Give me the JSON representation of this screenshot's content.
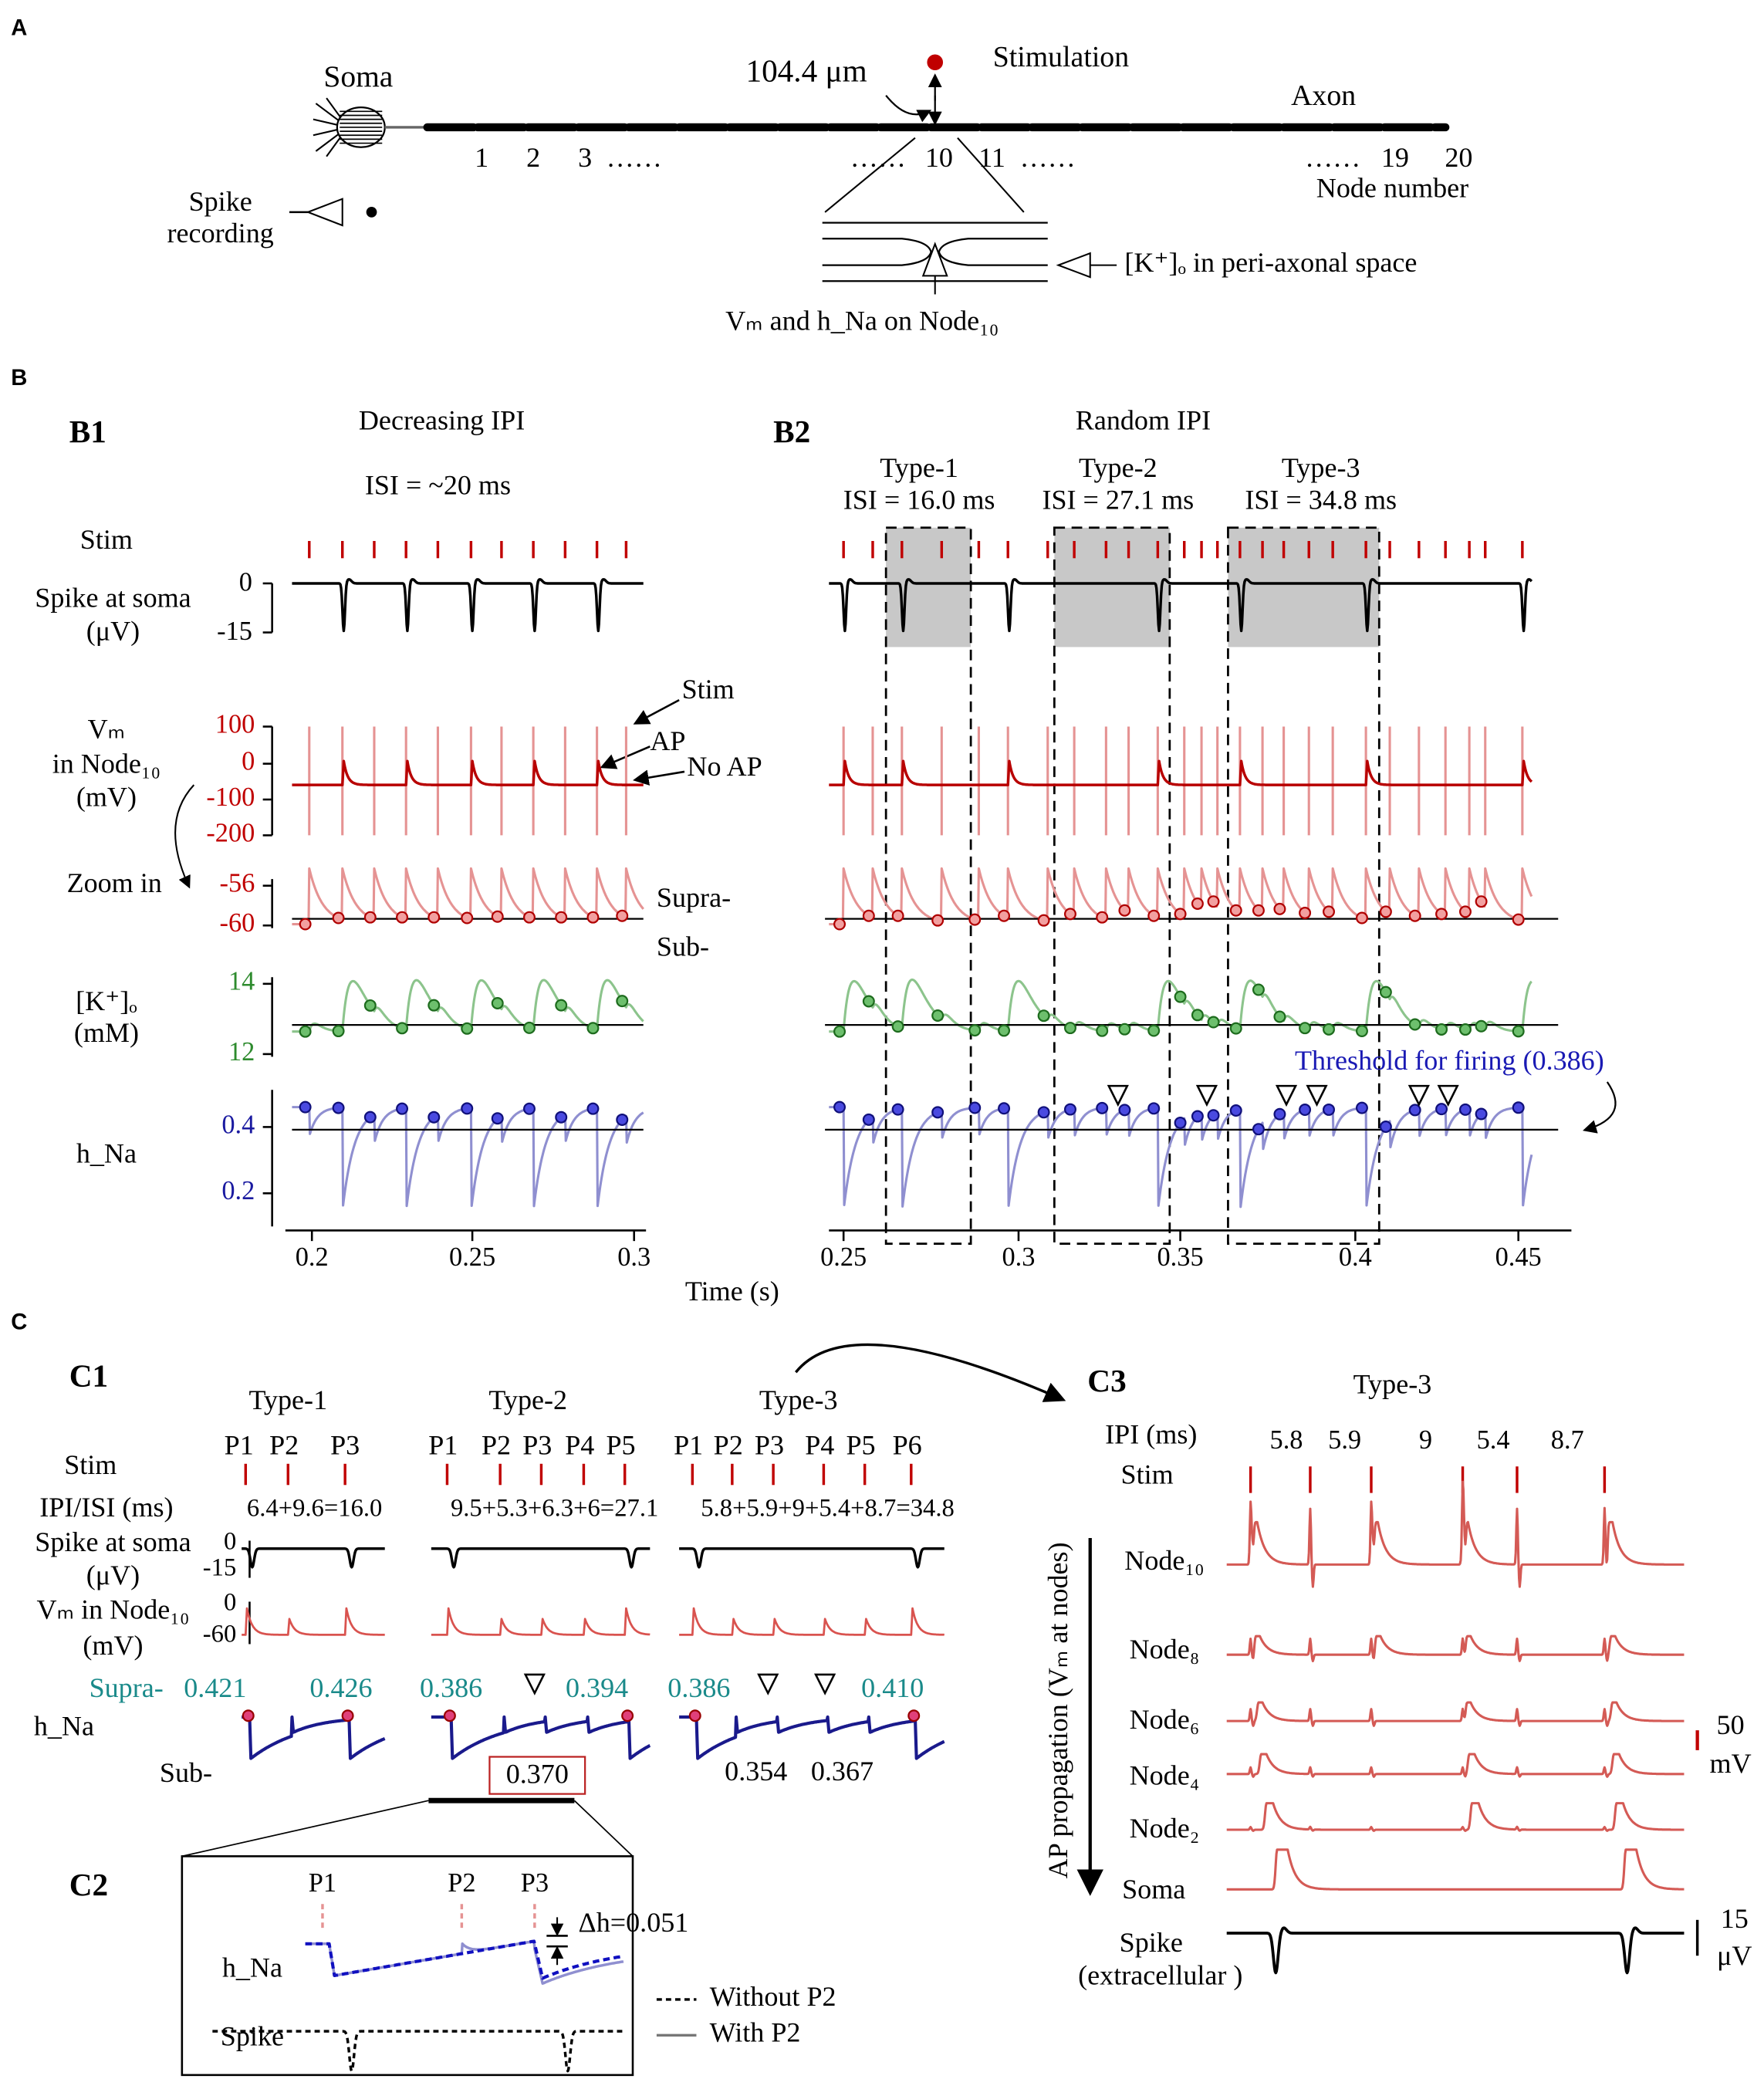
{
  "panel_a": {
    "label": "A",
    "soma": "Soma",
    "distance": "104.4 μm",
    "stimulation": "Stimulation",
    "axon": "Axon",
    "node_numbers": [
      "1",
      "2",
      "3",
      "……",
      "……",
      "10",
      "11",
      "……",
      "……",
      "19",
      "20"
    ],
    "node_number_label": "Node number",
    "spike_recording": [
      "Spike",
      "recording"
    ],
    "k_label": "[K⁺]ₒ in peri-axonal space",
    "vm_label": "Vₘ and h_Na on Node₁₀"
  },
  "panel_b": {
    "label": "B",
    "b1": {
      "label": "B1",
      "title": "Decreasing IPI",
      "isi": "ISI = ~20 ms",
      "x_ticks": [
        "0.2",
        "0.25",
        "0.3"
      ]
    },
    "b2": {
      "label": "B2",
      "title": "Random IPI",
      "types": [
        {
          "name": "Type-1",
          "isi": "ISI = 16.0 ms"
        },
        {
          "name": "Type-2",
          "isi": "ISI = 27.1 ms"
        },
        {
          "name": "Type-3",
          "isi": "ISI = 34.8 ms"
        }
      ],
      "threshold": "Threshold for firing (0.386)",
      "x_ticks": [
        "0.25",
        "0.3",
        "0.35",
        "0.4",
        "0.45"
      ]
    },
    "rows": {
      "stim": "Stim",
      "spike": [
        "Spike at soma",
        "(μV)"
      ],
      "spike_ticks": [
        "0",
        "-15"
      ],
      "vm": [
        "Vₘ",
        "in Node₁₀",
        "(mV)"
      ],
      "vm_ticks": [
        "100",
        "0",
        "-100",
        "-200"
      ],
      "annotations": [
        "Stim",
        "AP",
        "No AP"
      ],
      "zoom": "Zoom in",
      "zoom_ticks": [
        "-56",
        "-60"
      ],
      "supra": "Supra-",
      "sub": "Sub-",
      "k": [
        "[K⁺]ₒ",
        "(mM)"
      ],
      "k_ticks": [
        "14",
        "12"
      ],
      "h_na": "h_Na",
      "h_ticks": [
        "0.4",
        "0.2"
      ]
    },
    "x_label": "Time (s)"
  },
  "panel_c": {
    "label": "C",
    "c1": {
      "label": "C1",
      "types": [
        {
          "name": "Type-1",
          "pulses": [
            "P1",
            "P2",
            "P3"
          ],
          "ipi": "6.4+9.6=16.0"
        },
        {
          "name": "Type-2",
          "pulses": [
            "P1",
            "P2",
            "P3",
            "P4",
            "P5"
          ],
          "ipi": "9.5+5.3+6.3+6=27.1"
        },
        {
          "name": "Type-3",
          "pulses": [
            "P1",
            "P2",
            "P3",
            "P4",
            "P5",
            "P6"
          ],
          "ipi": "5.8+5.9+9+5.4+8.7=34.8"
        }
      ],
      "stim": "Stim",
      "ipi_label": "IPI/ISI (ms)",
      "spike": [
        "Spike at soma",
        "(μV)"
      ],
      "spike_ticks": [
        "0",
        "-15"
      ],
      "vm": [
        "Vₘ in Node₁₀",
        "(mV)"
      ],
      "vm_ticks": [
        "0",
        "-60"
      ],
      "supra": "Supra-",
      "supra_values": [
        "0.421",
        "0.426",
        "0.386",
        "0.394",
        "0.386",
        "0.410"
      ],
      "h_na": "h_Na",
      "sub": "Sub-",
      "sub_values": [
        "0.370",
        "0.354",
        "0.367"
      ]
    },
    "c2": {
      "label": "C2",
      "pulses": [
        "P1",
        "P2",
        "P3"
      ],
      "delta": "Δh=0.051",
      "h_na": "h_Na",
      "spike": "Spike",
      "legend": [
        "Without P2",
        "With P2"
      ]
    },
    "c3": {
      "label": "C3",
      "title": "Type-3",
      "ipi_label": "IPI (ms)",
      "ipi_values": [
        "5.8",
        "5.9",
        "9",
        "5.4",
        "8.7"
      ],
      "stim": "Stim",
      "rows": [
        "Node₁₀",
        "Node₈",
        "Node₆",
        "Node₄",
        "Node₂",
        "Soma"
      ],
      "spike": [
        "Spike",
        "(extracellular )"
      ],
      "axis_label": "AP propagation (Vₘ at nodes)",
      "scale_vm": [
        "50",
        "mV"
      ],
      "scale_spike": [
        "15",
        "μV"
      ]
    }
  }
}
